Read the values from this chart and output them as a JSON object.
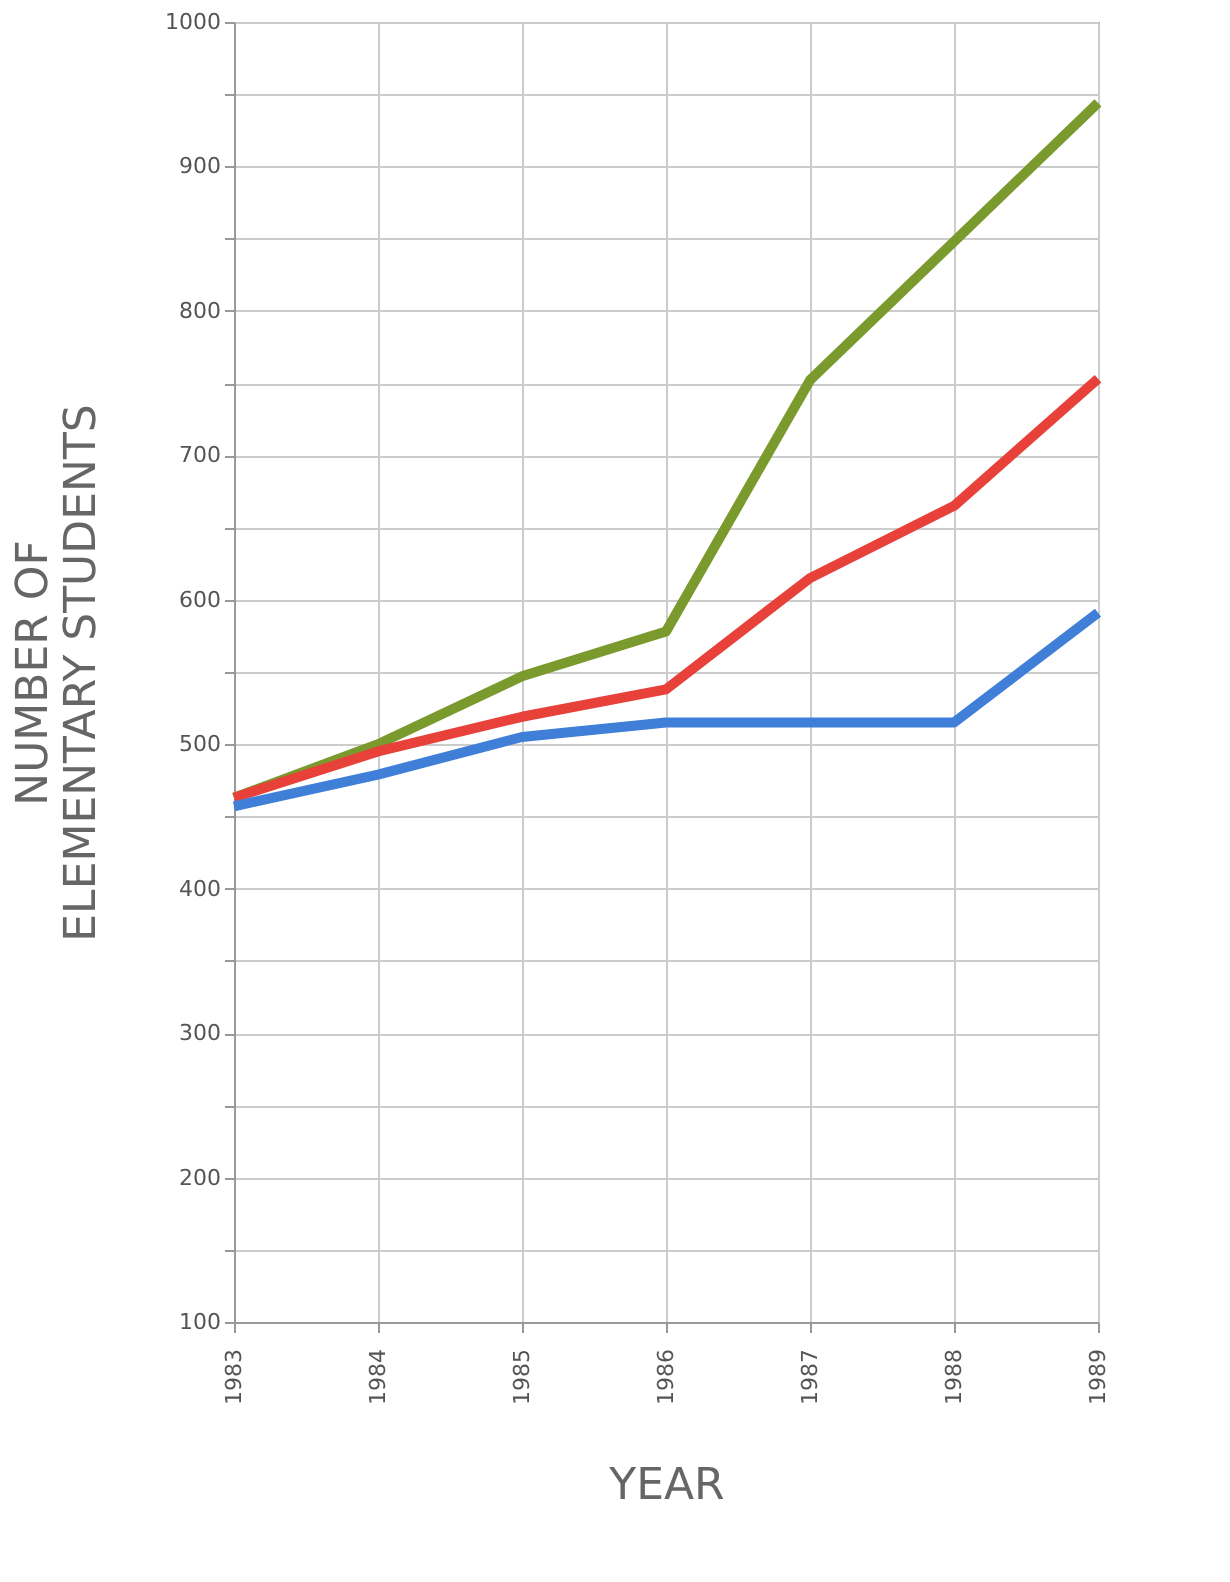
{
  "chart_data": {
    "type": "line",
    "xlabel": "YEAR",
    "ylabel": "NUMBER OF\nELEMENTARY STUDENTS",
    "x": [
      1983,
      1984,
      1985,
      1986,
      1987,
      1988,
      1989
    ],
    "series": [
      {
        "color": "#7a9a2e",
        "values": [
          463,
          500,
          547,
          578,
          752,
          848,
          944
        ]
      },
      {
        "color": "#e8413a",
        "values": [
          463,
          495,
          519,
          538,
          615,
          665,
          753
        ]
      },
      {
        "color": "#3f7fd8",
        "values": [
          457,
          479,
          505,
          515,
          515,
          515,
          591
        ]
      }
    ],
    "xlim": [
      1983,
      1989
    ],
    "xticks": [
      1983,
      1984,
      1985,
      1986,
      1987,
      1988,
      1989
    ],
    "ylim": [
      100,
      1000
    ],
    "yticks": [
      100,
      {
        "value": 150,
        "label": null
      },
      200,
      {
        "value": 250,
        "label": null
      },
      300,
      {
        "value": 350,
        "label": null
      },
      400,
      {
        "value": 450,
        "label": null
      },
      500,
      {
        "value": 550,
        "label": null
      },
      600,
      {
        "value": 650,
        "label": null
      },
      700,
      {
        "value": 750,
        "label": null
      },
      800,
      {
        "value": 850,
        "label": null
      },
      900,
      {
        "value": 950,
        "label": null
      },
      1000
    ],
    "grid": true,
    "legend": false,
    "marker": "none",
    "line_style": "solid"
  }
}
